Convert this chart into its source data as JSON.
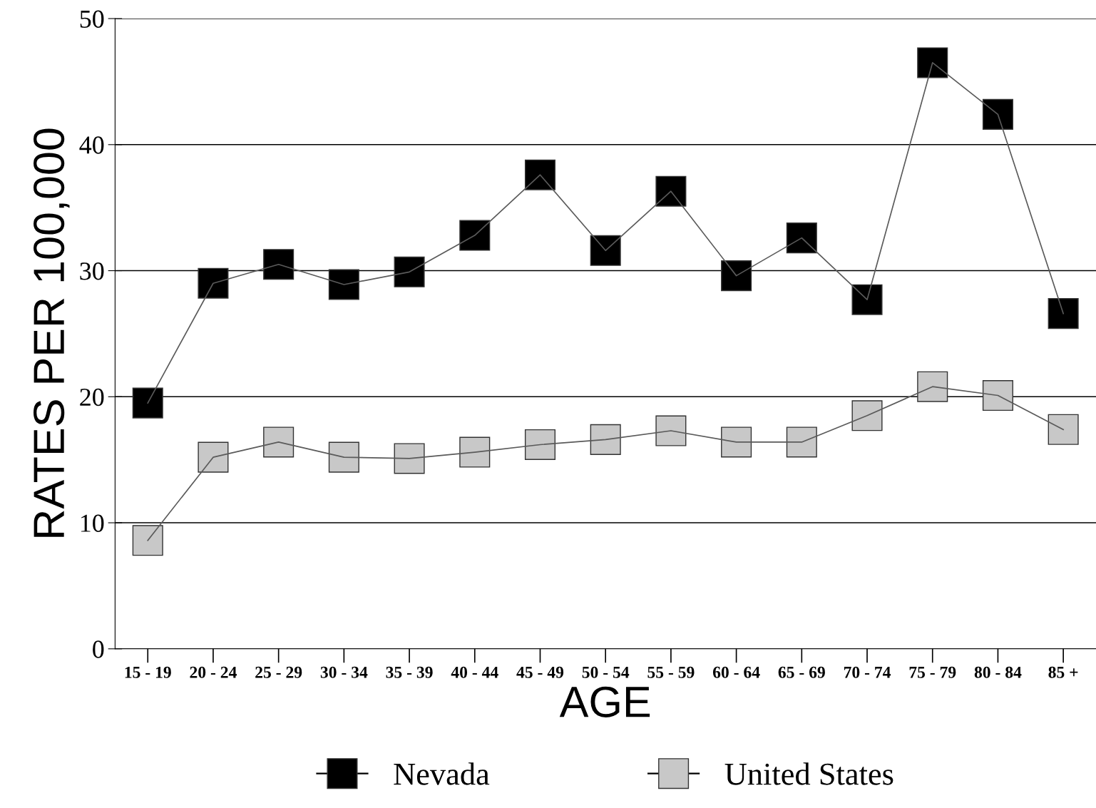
{
  "chart_data": {
    "type": "line",
    "xlabel": "AGE",
    "ylabel": "RATES PER 100,000",
    "categories": [
      "15 - 19",
      "20 - 24",
      "25 - 29",
      "30 - 34",
      "35 - 39",
      "40 - 44",
      "45 - 49",
      "50 - 54",
      "55 - 59",
      "60 - 64",
      "65 - 69",
      "70 - 74",
      "75 - 79",
      "80 - 84",
      "85 +"
    ],
    "series": [
      {
        "name": "Nevada",
        "color": "#000000",
        "values": [
          19.5,
          29.0,
          30.5,
          28.9,
          29.9,
          32.8,
          37.6,
          31.6,
          36.3,
          29.6,
          32.6,
          27.7,
          46.5,
          42.4,
          26.6
        ]
      },
      {
        "name": "United States",
        "color": "#c8c8c8",
        "values": [
          8.6,
          15.2,
          16.4,
          15.2,
          15.1,
          15.6,
          16.2,
          16.6,
          17.3,
          16.4,
          16.4,
          18.5,
          20.8,
          20.1,
          17.4
        ]
      }
    ],
    "ylim": [
      0,
      50
    ],
    "yticks": [
      0,
      10,
      20,
      30,
      40,
      50
    ],
    "grid": "y",
    "legend": "bottom",
    "marker": "square",
    "line_style": "solid"
  }
}
